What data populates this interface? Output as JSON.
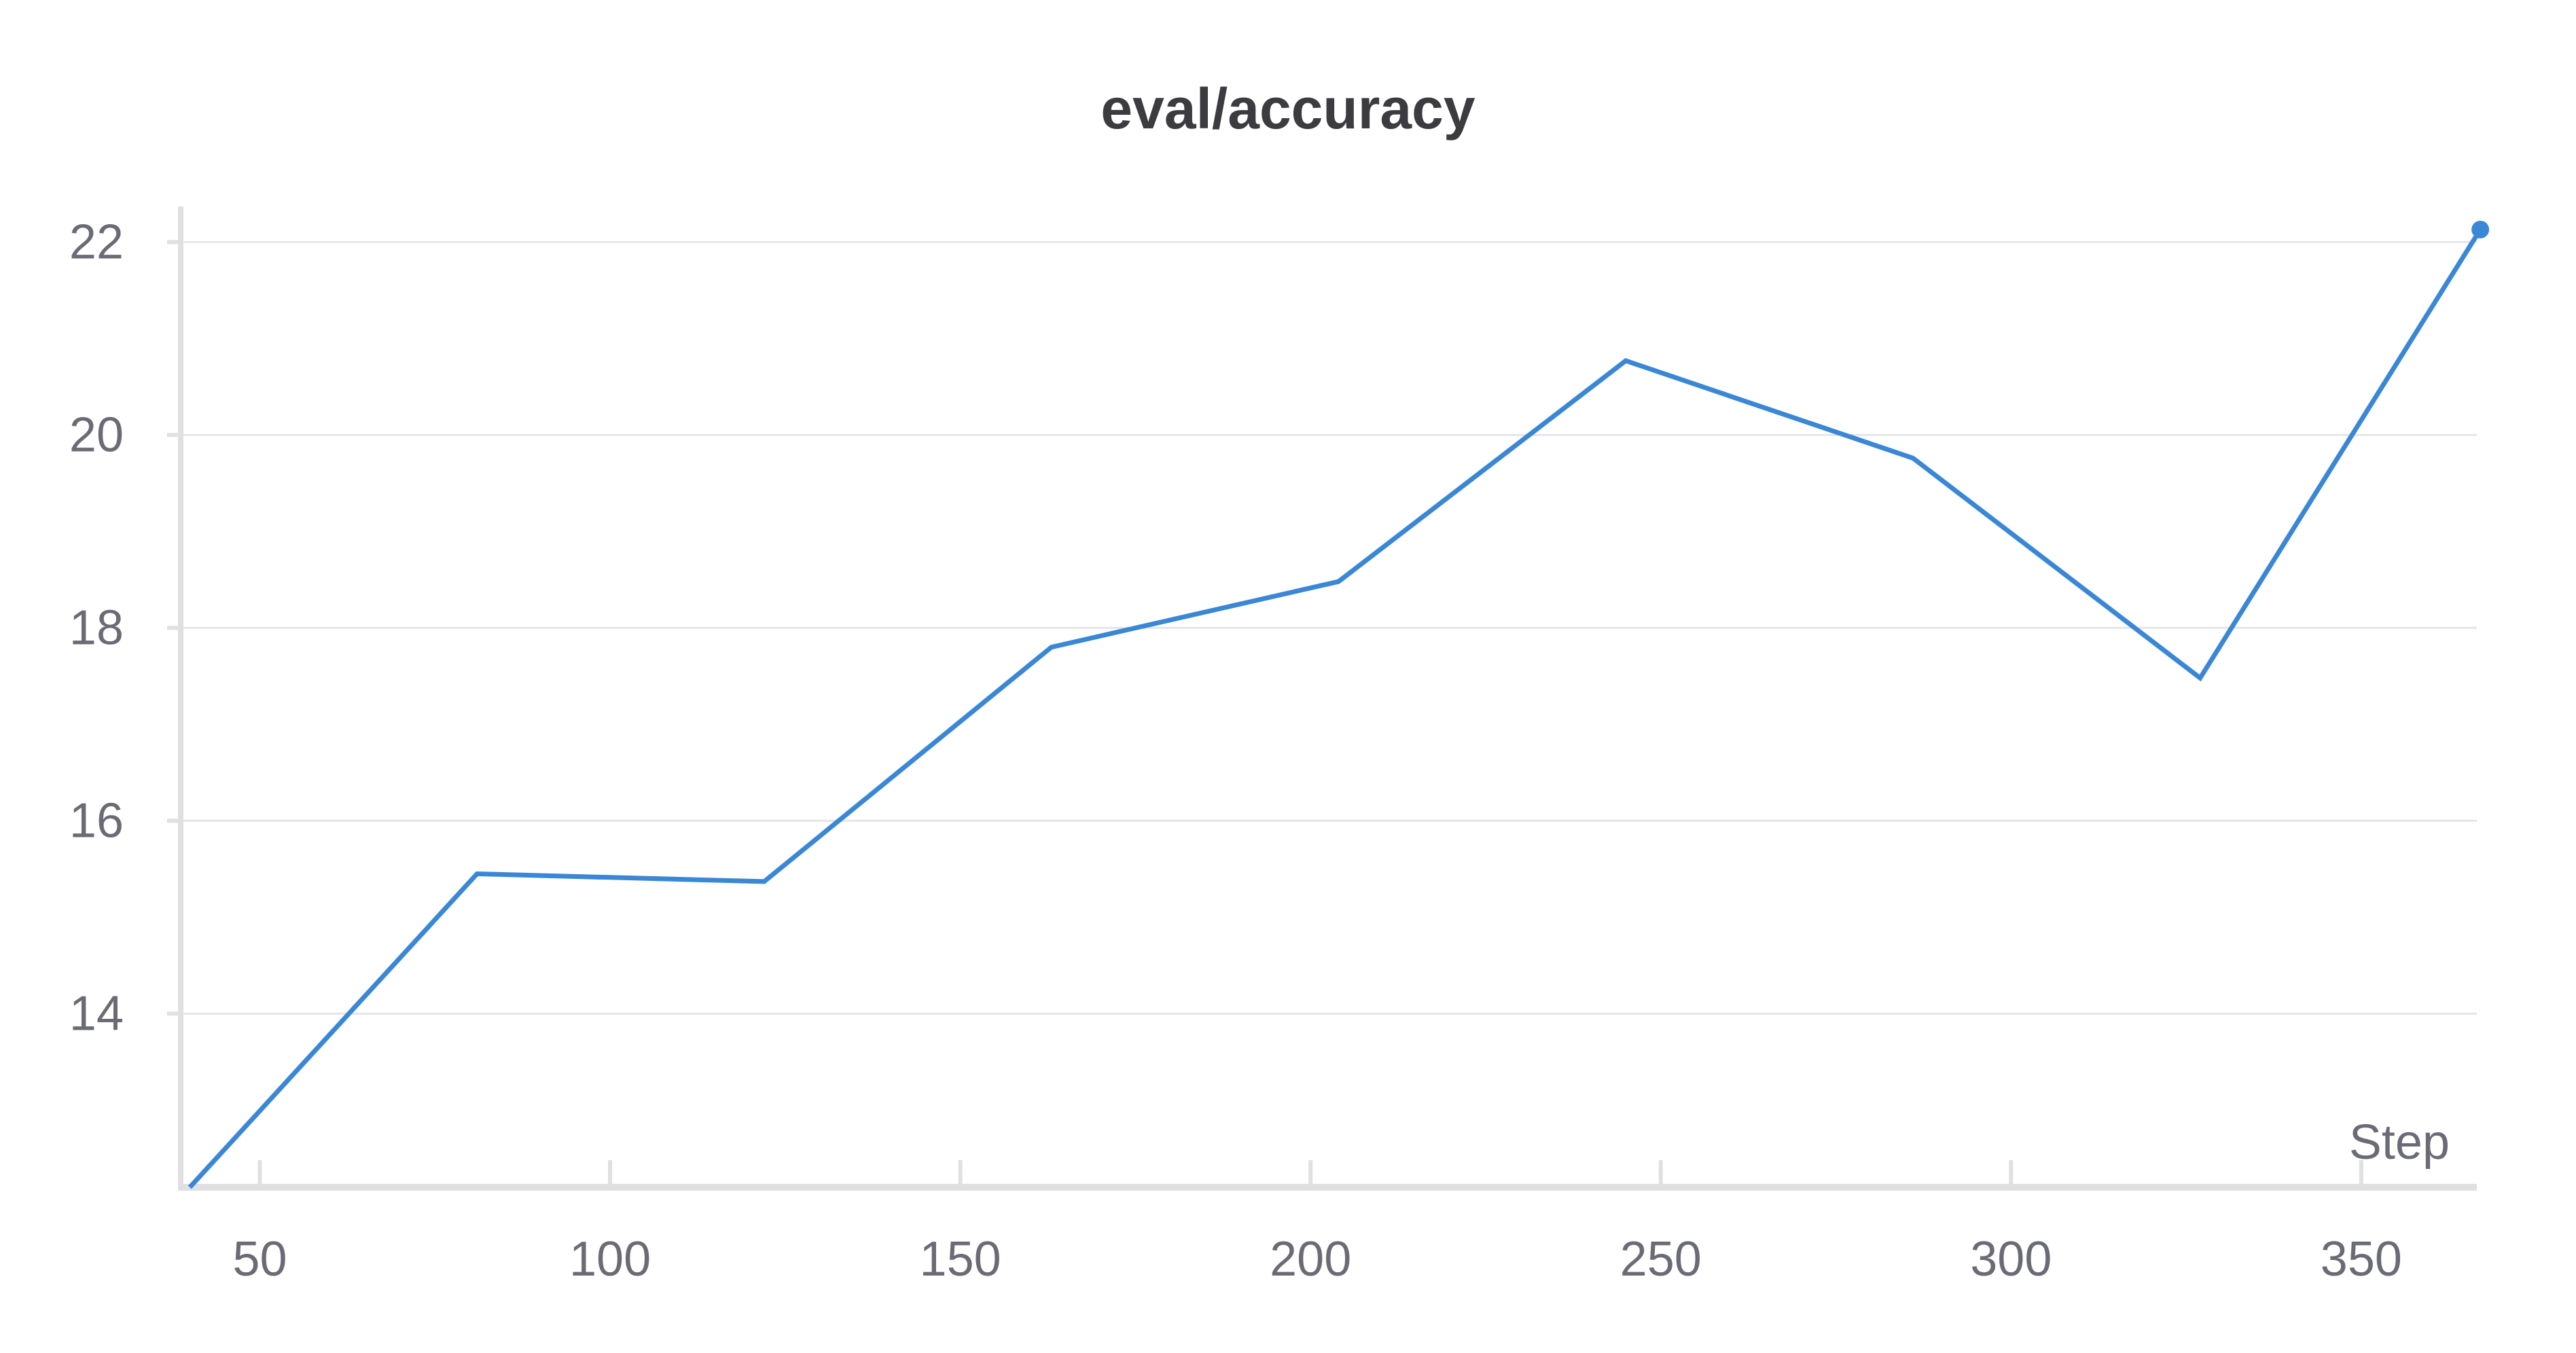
{
  "chart_data": {
    "type": "line",
    "title": "eval/accuracy",
    "xlabel": "Step",
    "ylabel": "",
    "xlim": [
      38.7,
      366.5
    ],
    "ylim": [
      12.2,
      22.2
    ],
    "xticks": [
      50,
      100,
      150,
      200,
      250,
      300,
      350
    ],
    "yticks": [
      14,
      16,
      18,
      20,
      22
    ],
    "grid": true,
    "legend": "none",
    "series": [
      {
        "color": "#3a87d6",
        "x": [
          40,
          81,
          122,
          163,
          204,
          245,
          286,
          327,
          367
        ],
        "y": [
          12.2,
          15.45,
          15.37,
          17.8,
          18.48,
          20.77,
          19.76,
          17.48,
          22.13
        ]
      }
    ]
  }
}
